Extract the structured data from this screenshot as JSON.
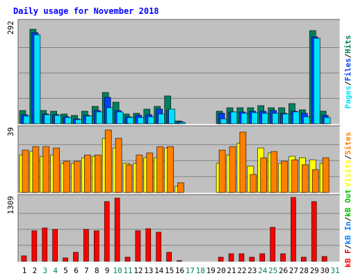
{
  "chart_data": {
    "type": "bar",
    "title": "Daily usage for November 2018",
    "x": [
      "1",
      "2",
      "3",
      "4",
      "5",
      "6",
      "7",
      "8",
      "9",
      "10",
      "11",
      "12",
      "13",
      "14",
      "15",
      "16",
      "17",
      "18",
      "19",
      "20",
      "21",
      "22",
      "23",
      "24",
      "25",
      "26",
      "27",
      "28",
      "29",
      "30",
      "31"
    ],
    "weekend_days": [
      "3",
      "4",
      "10",
      "11",
      "17",
      "18",
      "24",
      "25",
      "31"
    ],
    "panels": [
      {
        "id": "hits",
        "ymax_label": "292",
        "ymax": 292,
        "legend": [
          "Pages",
          "/",
          "Files",
          "/",
          "Hits"
        ],
        "series": [
          {
            "name": "Hits",
            "color": "#00805f",
            "values": [
              38,
              272,
              38,
              35,
              27,
              23,
              35,
              50,
              90,
              62,
              28,
              30,
              42,
              50,
              80,
              7,
              0,
              0,
              0,
              35,
              45,
              45,
              45,
              52,
              45,
              45,
              58,
              40,
              268,
              35,
              0
            ]
          },
          {
            "name": "Files",
            "color": "#0040ff",
            "values": [
              25,
              262,
              27,
              26,
              20,
              14,
              24,
              38,
              75,
              38,
              20,
              23,
              26,
              42,
              38,
              5,
              0,
              0,
              0,
              30,
              34,
              33,
              35,
              35,
              38,
              30,
              36,
              30,
              250,
              24,
              0
            ]
          },
          {
            "name": "Pages",
            "color": "#00e1ff",
            "values": [
              21,
              255,
              25,
              24,
              17,
              12,
              22,
              33,
              45,
              34,
              18,
              18,
              20,
              28,
              41,
              4,
              0,
              0,
              0,
              14,
              33,
              30,
              32,
              30,
              30,
              28,
              34,
              20,
              245,
              18,
              0
            ]
          }
        ]
      },
      {
        "id": "visits",
        "ymax_label": "39",
        "ymax": 39,
        "legend": [
          "Visits",
          "/",
          "Sites"
        ],
        "series": [
          {
            "name": "Visits",
            "color": "#ffff00",
            "values": [
              23,
              25,
              22,
              23,
              18,
              18,
              21,
              22,
              33,
              27,
              18,
              18,
              21,
              21,
              27,
              4,
              0,
              0,
              0,
              18,
              23,
              30,
              16,
              27,
              24,
              18,
              22,
              21,
              20,
              18,
              0
            ]
          },
          {
            "name": "Sites",
            "color": "#ff8000",
            "values": [
              26,
              28,
              28,
              27,
              19,
              19,
              23,
              23,
              38,
              33,
              17,
              23,
              24,
              28,
              28,
              6,
              0,
              0,
              0,
              26,
              28,
              37,
              11,
              21,
              25,
              19,
              20,
              17,
              14,
              21,
              0
            ]
          }
        ]
      },
      {
        "id": "kbytes",
        "ymax_label": "1309",
        "ymax": 1309,
        "legend": [
          "kB F",
          "/",
          "kB In",
          "/",
          "kB Out"
        ],
        "series": [
          {
            "name": "kB F",
            "color": "#ff0000",
            "values": [
              120,
              620,
              680,
              650,
              70,
              190,
              650,
              620,
              1230,
              1300,
              90,
              620,
              670,
              600,
              190,
              15,
              0,
              0,
              0,
              80,
              150,
              150,
              80,
              150,
              700,
              150,
              1309,
              80,
              1220,
              100,
              0
            ]
          }
        ]
      }
    ]
  },
  "colors": {
    "background": "#ffffff",
    "plot_area": "#c0c0c0",
    "title": "#0000ff",
    "weekday_label": "#000000",
    "weekend_label": "#00805f",
    "kb_in": "#0080ff",
    "kb_out": "#00c000",
    "grid": "#808080"
  }
}
